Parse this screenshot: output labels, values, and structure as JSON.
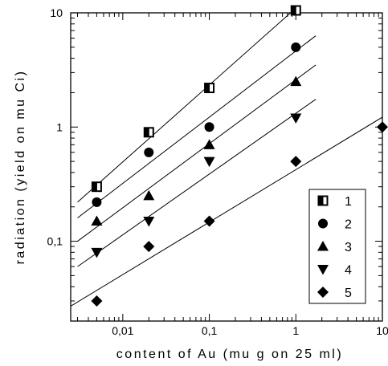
{
  "chart_data": {
    "type": "scatter",
    "xlabel": "content of Au (mu g on 25 ml)",
    "ylabel": "radiation (yield on mu Ci)",
    "xscale": "log",
    "yscale": "log",
    "xlim": [
      0.0025,
      10
    ],
    "ylim": [
      0.02,
      10
    ],
    "x_ticks": [
      {
        "value": 0.01,
        "label": "0,01"
      },
      {
        "value": 0.1,
        "label": "0,1"
      },
      {
        "value": 1,
        "label": "1"
      },
      {
        "value": 10,
        "label": "10"
      }
    ],
    "y_ticks": [
      {
        "value": 0.1,
        "label": "0,1"
      },
      {
        "value": 1,
        "label": "1"
      },
      {
        "value": 10,
        "label": "10"
      }
    ],
    "legend_position": "bottom-right",
    "grid": false,
    "series": [
      {
        "name": "1",
        "marker": "square-half",
        "points": [
          [
            0.005,
            0.3
          ],
          [
            0.02,
            0.9
          ],
          [
            0.1,
            2.2
          ],
          [
            1,
            10.5
          ]
        ],
        "fit": [
          [
            0.003,
            0.22
          ],
          [
            1.0,
            11.0
          ]
        ]
      },
      {
        "name": "2",
        "marker": "circle",
        "points": [
          [
            0.005,
            0.22
          ],
          [
            0.02,
            0.6
          ],
          [
            0.1,
            1.0
          ],
          [
            1,
            5.0
          ]
        ],
        "fit": [
          [
            0.003,
            0.16
          ],
          [
            1.7,
            6.3
          ]
        ]
      },
      {
        "name": "3",
        "marker": "triangle-up",
        "points": [
          [
            0.005,
            0.15
          ],
          [
            0.02,
            0.25
          ],
          [
            0.1,
            0.7
          ],
          [
            1,
            2.5
          ]
        ],
        "fit": [
          [
            0.003,
            0.1
          ],
          [
            1.7,
            3.5
          ]
        ]
      },
      {
        "name": "4",
        "marker": "triangle-down",
        "points": [
          [
            0.005,
            0.08
          ],
          [
            0.02,
            0.15
          ],
          [
            0.1,
            0.5
          ],
          [
            1,
            1.2
          ]
        ],
        "fit": [
          [
            0.003,
            0.06
          ],
          [
            1.7,
            1.75
          ]
        ]
      },
      {
        "name": "5",
        "marker": "diamond",
        "points": [
          [
            0.005,
            0.03
          ],
          [
            0.02,
            0.09
          ],
          [
            0.1,
            0.15
          ],
          [
            1,
            0.5
          ],
          [
            10,
            1.0
          ]
        ],
        "fit": [
          [
            0.0025,
            0.027
          ],
          [
            10,
            1.22
          ]
        ]
      }
    ]
  }
}
